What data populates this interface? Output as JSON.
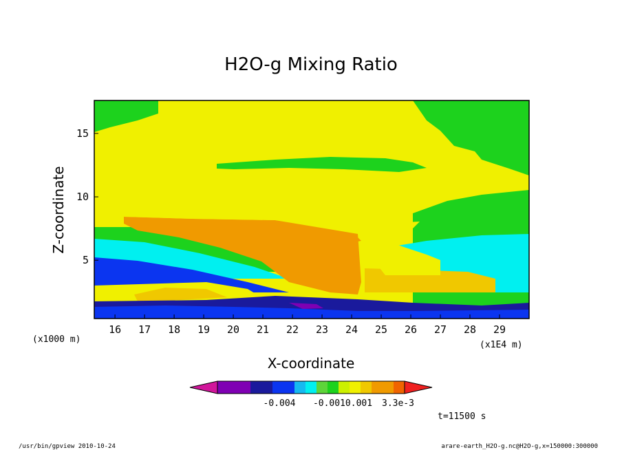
{
  "chart_data": {
    "type": "heatmap",
    "title": "H2O-g Mixing Ratio",
    "xlabel": "X-coordinate",
    "ylabel": "Z-coordinate",
    "x_unit_left": "(x1000 m)",
    "x_unit_right": "(x1E4 m)",
    "x_ticks": [
      "16",
      "17",
      "18",
      "19",
      "20",
      "21",
      "22",
      "23",
      "24",
      "25",
      "26",
      "27",
      "28",
      "29"
    ],
    "y_ticks": [
      "5",
      "10",
      "15"
    ],
    "xlim": [
      15.3,
      30.0
    ],
    "ylim": [
      0.4,
      17.6
    ],
    "colorbar": {
      "colors": [
        "#d1169b",
        "#7f00b3",
        "#7f00b3",
        "#7f00b3",
        "#1a1a9c",
        "#1a1a9c",
        "#0b35f0",
        "#0b35f0",
        "#16b9f0",
        "#00f0f0",
        "#5ed43a",
        "#1dd21d",
        "#ccf000",
        "#f0f000",
        "#f0c800",
        "#f09a00",
        "#f09a00",
        "#f06400",
        "#f02020"
      ],
      "labels": [
        "-0.004",
        "-0.0010.001",
        "3.3e-3"
      ]
    },
    "time_label": "t=11500 s",
    "footer_left": "/usr/bin/gpview  2010-10-24",
    "footer_right": "arare-earth_H2O-g.nc@H2O-g,x=150000:300000",
    "colors": {
      "yellow": "#f0f000",
      "green": "#1dd21d",
      "cyan": "#00f0f0",
      "blue": "#0b35f0",
      "navy": "#1a1a9c",
      "purple": "#7f00b3",
      "orange": "#f09a00",
      "gold": "#f0c800",
      "sky": "#16b9f0"
    }
  }
}
